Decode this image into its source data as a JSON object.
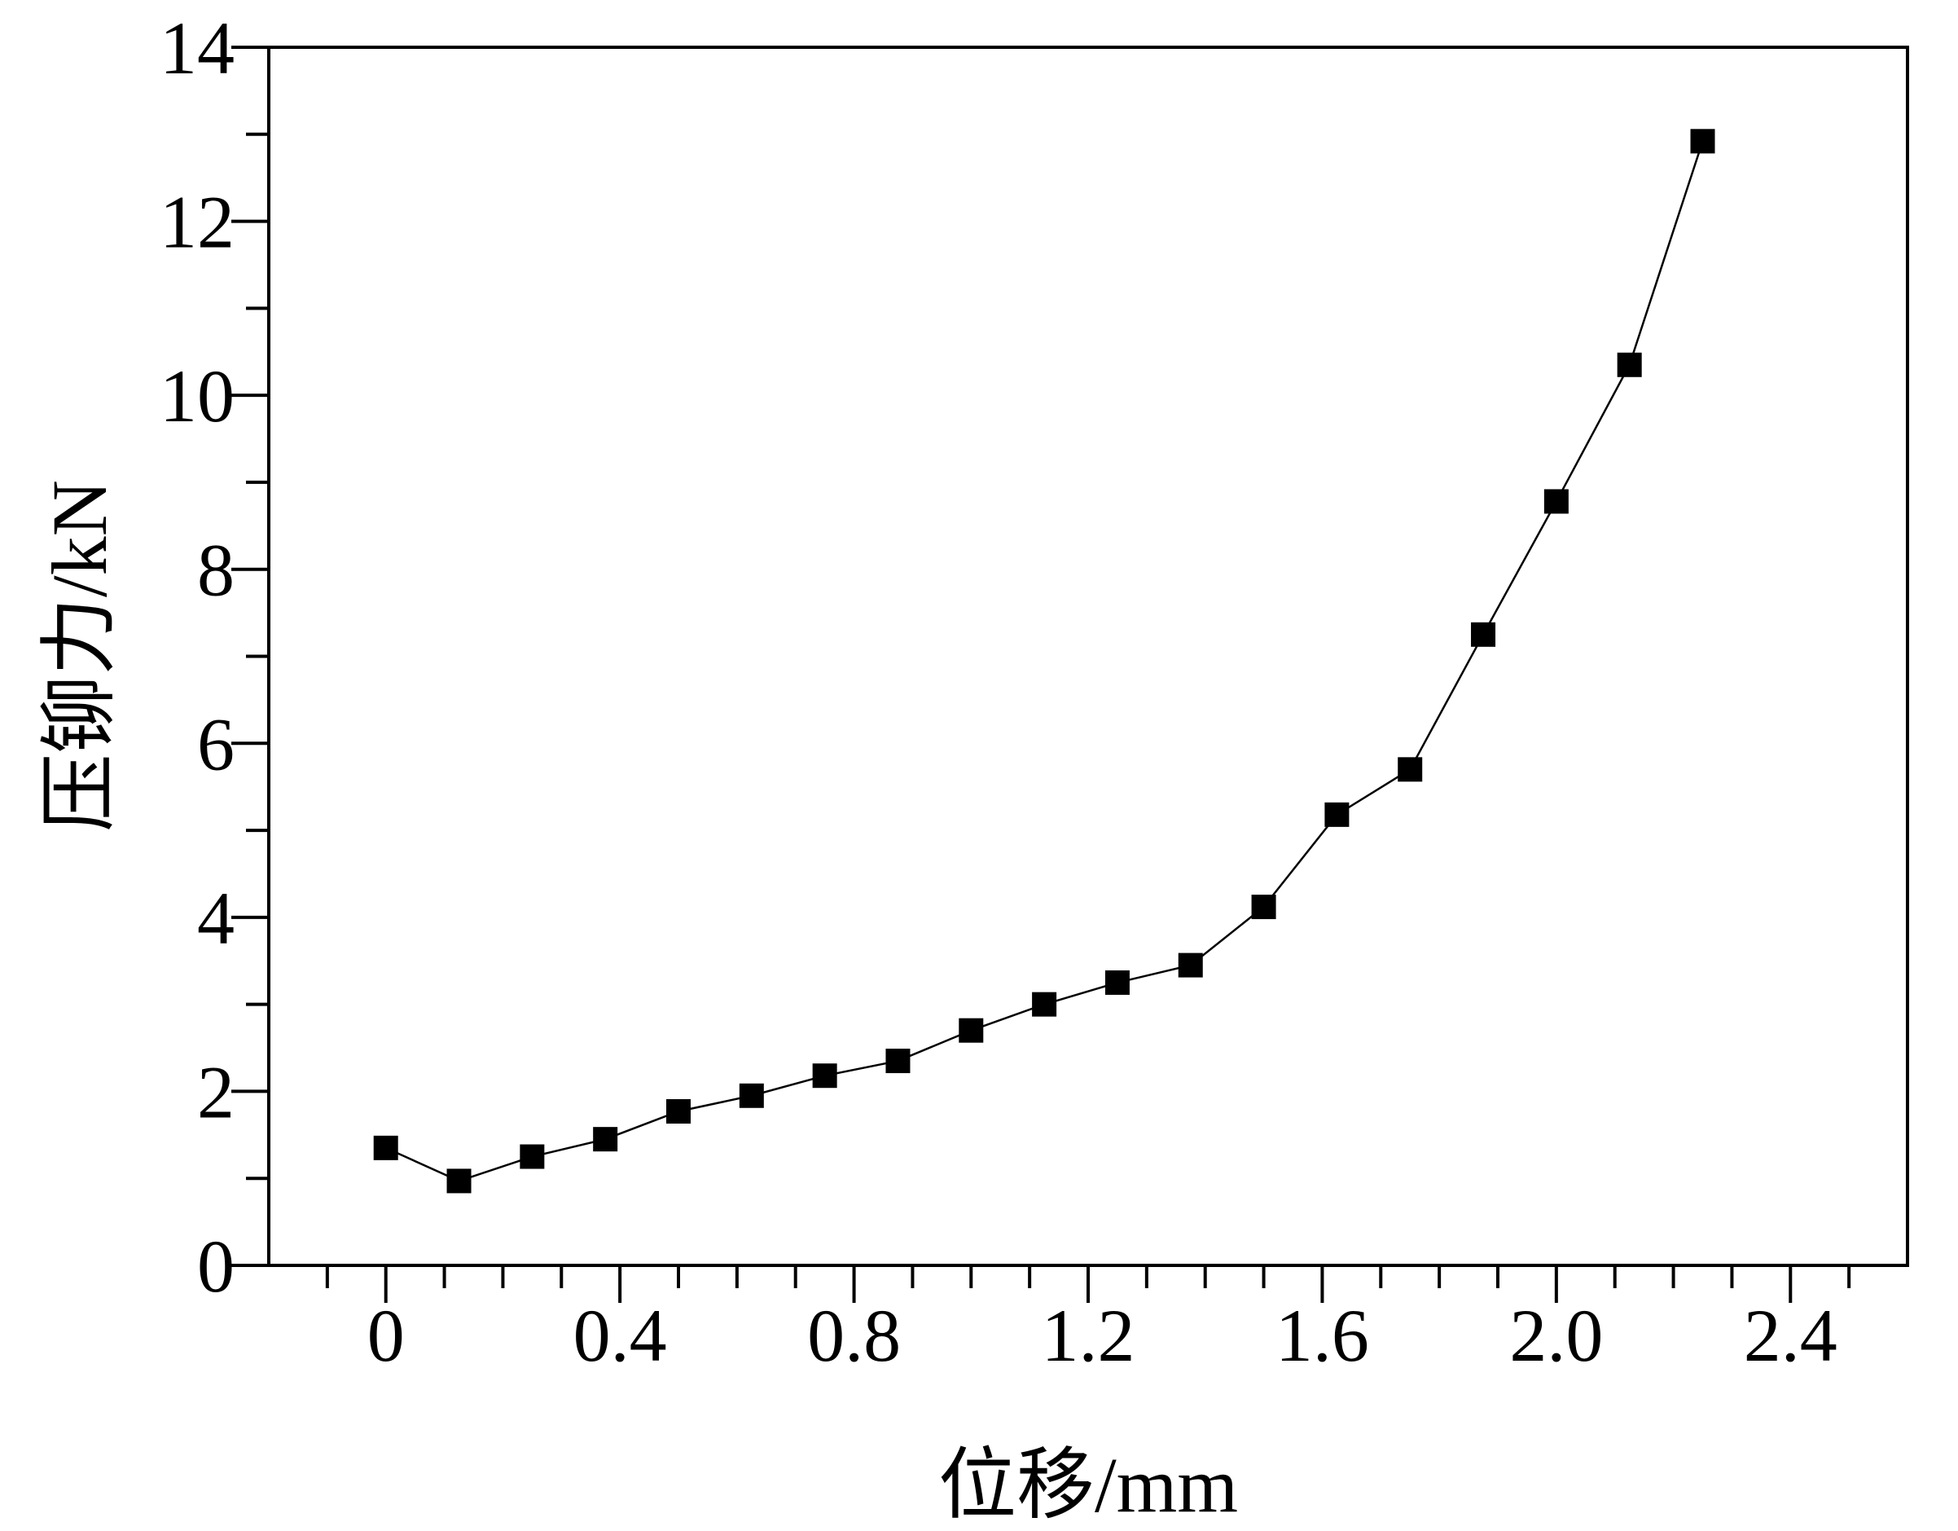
{
  "chart_data": {
    "type": "line",
    "xlabel": "位移/mm",
    "ylabel": "压铆力/kN",
    "xlim": [
      -0.2,
      2.6
    ],
    "ylim": [
      0,
      14
    ],
    "x_ticks": [
      0,
      0.4,
      0.8,
      1.2,
      1.6,
      2.0,
      2.4
    ],
    "x_tick_labels": [
      "0",
      "0.4",
      "0.8",
      "1.2",
      "1.6",
      "2.0",
      "2.4"
    ],
    "x_minor_step": 0.1,
    "y_ticks": [
      0,
      2,
      4,
      6,
      8,
      10,
      12,
      14
    ],
    "y_tick_labels": [
      "0",
      "2",
      "4",
      "6",
      "8",
      "10",
      "12",
      "14"
    ],
    "y_minor_step": 1,
    "grid": false,
    "marker": "square",
    "colors": {
      "series": "#000000",
      "axis": "#000000",
      "background": "#ffffff"
    },
    "series": [
      {
        "x": [
          0,
          0.125,
          0.25,
          0.375,
          0.5,
          0.625,
          0.75,
          0.875,
          1.0,
          1.125,
          1.25,
          1.375,
          1.5,
          1.625,
          1.75,
          1.875,
          2.0,
          2.125,
          2.25
        ],
        "y": [
          1.35,
          0.97,
          1.25,
          1.45,
          1.77,
          1.95,
          2.18,
          2.35,
          2.7,
          3.0,
          3.25,
          3.45,
          4.12,
          5.18,
          5.7,
          7.25,
          8.78,
          10.35,
          12.92
        ]
      }
    ]
  }
}
